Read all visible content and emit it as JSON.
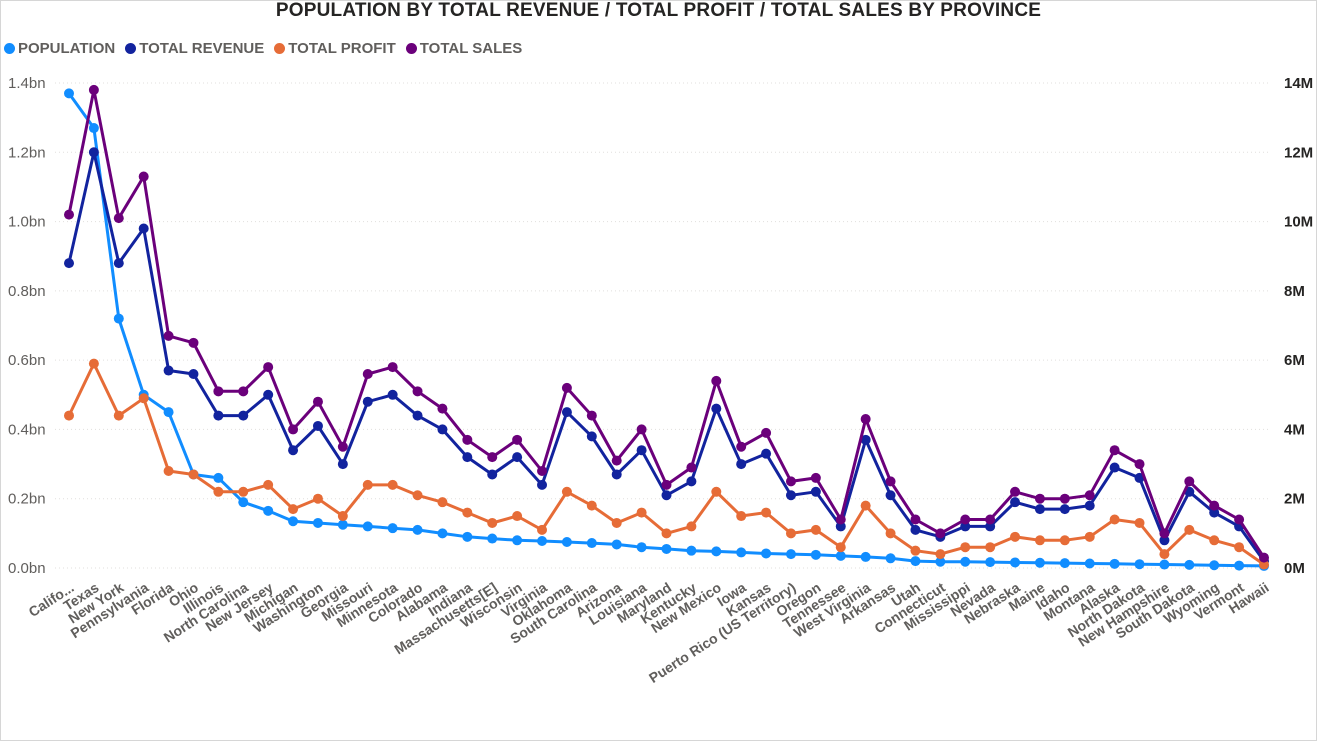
{
  "chart_data": {
    "type": "line",
    "title": "POPULATION BY TOTAL REVENUE / TOTAL PROFIT / TOTAL SALES BY PROVINCE",
    "legend_position": "top-left",
    "grid": true,
    "categories": [
      "Califo...",
      "Texas",
      "New York",
      "Pennsylvania",
      "Florida",
      "Ohio",
      "Illinois",
      "North Carolina",
      "New Jersey",
      "Michigan",
      "Washington",
      "Georgia",
      "Missouri",
      "Minnesota",
      "Colorado",
      "Alabama",
      "Indiana",
      "Massachusetts[E]",
      "Wisconsin",
      "Virginia",
      "Oklahoma",
      "South Carolina",
      "Arizona",
      "Louisiana",
      "Maryland",
      "Kentucky",
      "New Mexico",
      "Iowa",
      "Kansas",
      "Puerto Rico (US Territory)",
      "Oregon",
      "Tennessee",
      "West Virginia",
      "Arkansas",
      "Utah",
      "Connecticut",
      "Mississippi",
      "Nevada",
      "Nebraska",
      "Maine",
      "Idaho",
      "Montana",
      "Alaska",
      "North Dakota",
      "New Hampshire",
      "South Dakota",
      "Wyoming",
      "Vermont",
      "Hawaii"
    ],
    "left_axis": {
      "ylim": [
        0,
        1.4
      ],
      "ticks": [
        "0.0bn",
        "0.2bn",
        "0.4bn",
        "0.6bn",
        "0.8bn",
        "1.0bn",
        "1.2bn",
        "1.4bn"
      ],
      "tick_values": [
        0,
        0.2,
        0.4,
        0.6,
        0.8,
        1.0,
        1.2,
        1.4
      ]
    },
    "right_axis": {
      "ylim": [
        0,
        14
      ],
      "ticks": [
        "0M",
        "2M",
        "4M",
        "6M",
        "8M",
        "10M",
        "12M",
        "14M"
      ],
      "tick_values": [
        0,
        2,
        4,
        6,
        8,
        10,
        12,
        14
      ]
    },
    "series": [
      {
        "name": "POPULATION",
        "axis": "left",
        "color": "#118DFF",
        "values": [
          1.37,
          1.27,
          0.72,
          0.5,
          0.45,
          0.27,
          0.26,
          0.19,
          0.165,
          0.135,
          0.13,
          0.125,
          0.12,
          0.115,
          0.11,
          0.1,
          0.09,
          0.085,
          0.08,
          0.078,
          0.075,
          0.072,
          0.068,
          0.06,
          0.055,
          0.05,
          0.048,
          0.045,
          0.042,
          0.04,
          0.038,
          0.035,
          0.032,
          0.028,
          0.02,
          0.018,
          0.018,
          0.017,
          0.016,
          0.015,
          0.014,
          0.013,
          0.012,
          0.011,
          0.01,
          0.009,
          0.008,
          0.007,
          0.006
        ]
      },
      {
        "name": "TOTAL REVENUE",
        "axis": "right",
        "color": "#12239E",
        "values": [
          8.8,
          12.0,
          8.8,
          9.8,
          5.7,
          5.6,
          4.4,
          4.4,
          5.0,
          3.4,
          4.1,
          3.0,
          4.8,
          5.0,
          4.4,
          4.0,
          3.2,
          2.7,
          3.2,
          2.4,
          4.5,
          3.8,
          2.7,
          3.4,
          2.1,
          2.5,
          4.6,
          3.0,
          3.3,
          2.1,
          2.2,
          1.2,
          3.7,
          2.1,
          1.1,
          0.9,
          1.2,
          1.2,
          1.9,
          1.7,
          1.7,
          1.8,
          2.9,
          2.6,
          0.8,
          2.2,
          1.6,
          1.2,
          0.2
        ]
      },
      {
        "name": "TOTAL PROFIT",
        "axis": "right",
        "color": "#E66C37",
        "values": [
          4.4,
          5.9,
          4.4,
          4.9,
          2.8,
          2.7,
          2.2,
          2.2,
          2.4,
          1.7,
          2.0,
          1.5,
          2.4,
          2.4,
          2.1,
          1.9,
          1.6,
          1.3,
          1.5,
          1.1,
          2.2,
          1.8,
          1.3,
          1.6,
          1.0,
          1.2,
          2.2,
          1.5,
          1.6,
          1.0,
          1.1,
          0.6,
          1.8,
          1.0,
          0.5,
          0.4,
          0.6,
          0.6,
          0.9,
          0.8,
          0.8,
          0.9,
          1.4,
          1.3,
          0.4,
          1.1,
          0.8,
          0.6,
          0.1
        ]
      },
      {
        "name": "TOTAL SALES",
        "axis": "right",
        "color": "#6B007B",
        "values": [
          10.2,
          13.8,
          10.1,
          11.3,
          6.7,
          6.5,
          5.1,
          5.1,
          5.8,
          4.0,
          4.8,
          3.5,
          5.6,
          5.8,
          5.1,
          4.6,
          3.7,
          3.2,
          3.7,
          2.8,
          5.2,
          4.4,
          3.1,
          4.0,
          2.4,
          2.9,
          5.4,
          3.5,
          3.9,
          2.5,
          2.6,
          1.4,
          4.3,
          2.5,
          1.4,
          1.0,
          1.4,
          1.4,
          2.2,
          2.0,
          2.0,
          2.1,
          3.4,
          3.0,
          1.0,
          2.5,
          1.8,
          1.4,
          0.3
        ]
      }
    ]
  }
}
